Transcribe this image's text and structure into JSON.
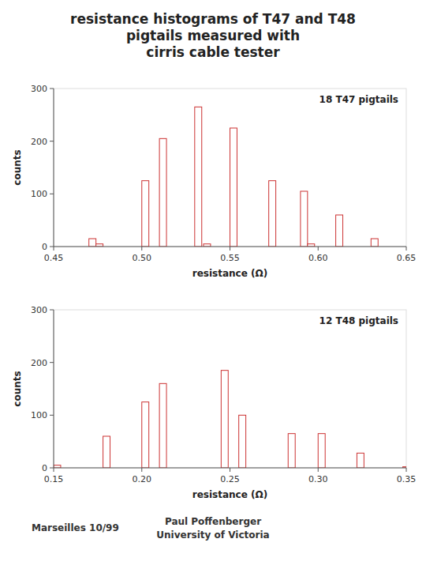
{
  "chart_data": [
    {
      "type": "bar",
      "title": "resistance histograms of T47 and T48\npigtails measured with\ncirris cable tester",
      "x_label": "resistance (Ω)",
      "y_label": "counts",
      "x": [
        0.47,
        0.474,
        0.5,
        0.51,
        0.53,
        0.535,
        0.55,
        0.572,
        0.59,
        0.594,
        0.61,
        0.63
      ],
      "bar_width": 0.004,
      "series": [
        {
          "name": "18 T47 pigtails",
          "color": "#cc3333",
          "values": [
            15,
            5,
            125,
            205,
            265,
            5,
            225,
            125,
            105,
            5,
            60,
            15
          ]
        }
      ],
      "xlim": [
        0.45,
        0.65
      ],
      "xticks": [
        0.45,
        {
          "value": 0.5,
          "label": "0.50"
        },
        0.55,
        {
          "value": 0.6,
          "label": "0.60"
        },
        0.65
      ],
      "ylim": [
        0,
        300
      ],
      "yticks": [
        0,
        100,
        200,
        300
      ],
      "legend": "upper right"
    },
    {
      "type": "bar",
      "x_label": "resistance (Ω)",
      "y_label": "counts",
      "x": [
        0.15,
        0.178,
        0.2,
        0.21,
        0.245,
        0.255,
        0.283,
        0.3,
        0.322,
        0.348
      ],
      "bar_width": 0.004,
      "series": [
        {
          "name": "12 T48 pigtails",
          "color": "#cc3333",
          "values": [
            5,
            60,
            125,
            160,
            185,
            100,
            65,
            65,
            28,
            2
          ]
        }
      ],
      "xlim": [
        0.15,
        0.35
      ],
      "xticks": [
        0.15,
        {
          "value": 0.2,
          "label": "0.20"
        },
        0.25,
        {
          "value": 0.3,
          "label": "0.30"
        },
        0.35
      ],
      "ylim": [
        0,
        300
      ],
      "yticks": [
        0,
        100,
        200,
        300
      ],
      "legend": "upper right",
      "annotations": [
        "Marseilles 10/99",
        "Paul Poffenberger\nUniversity of Victoria"
      ]
    }
  ]
}
